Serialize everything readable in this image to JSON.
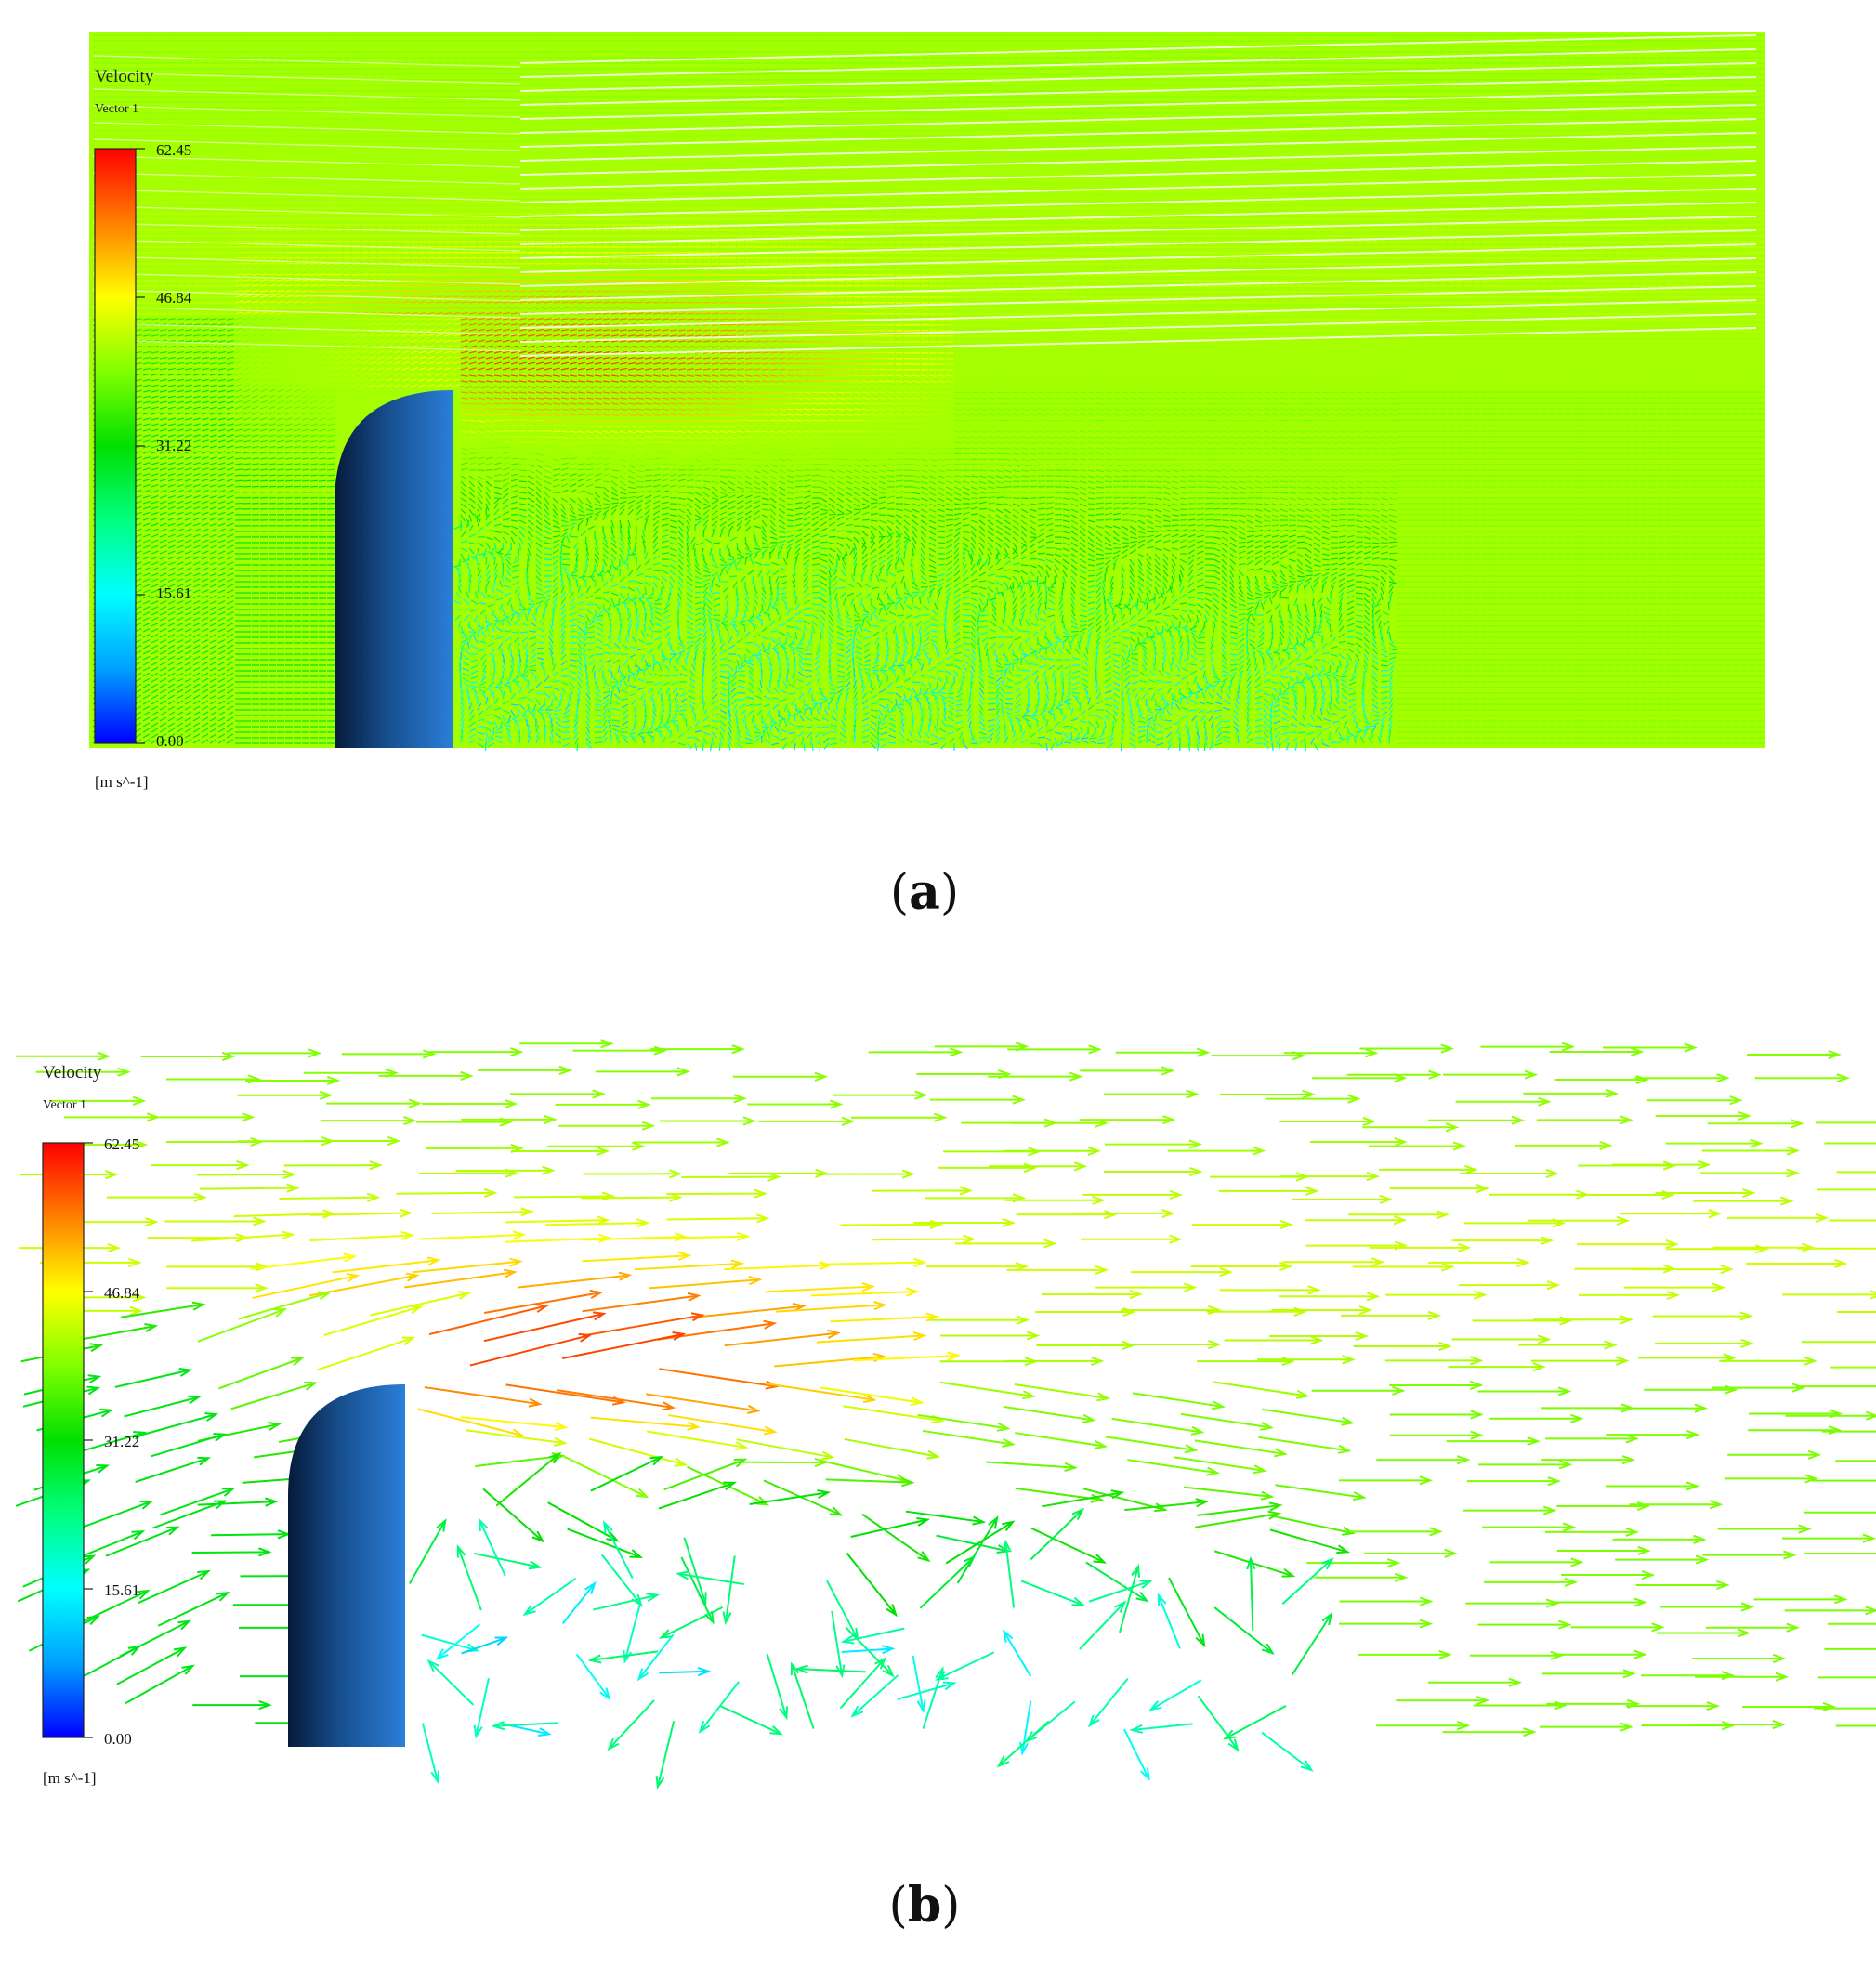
{
  "panels": [
    {
      "caption": "(a)",
      "caption_letter": "a",
      "legend": {
        "title": "Velocity",
        "subtitle": "Vector 1",
        "units": "[m s^-1]",
        "ticks": [
          "62.45",
          "46.84",
          "31.22",
          "15.61",
          "0.00"
        ]
      },
      "density": "dense"
    },
    {
      "caption": "(b)",
      "caption_letter": "b",
      "legend": {
        "title": "Velocity",
        "subtitle": "Vector 1",
        "units": "[m s^-1]",
        "ticks": [
          "62.45",
          "46.84",
          "31.22",
          "15.61",
          "0.00"
        ]
      },
      "density": "sparse"
    }
  ],
  "colormap": [
    "#0000ff",
    "#00a0ff",
    "#00ffff",
    "#00ff80",
    "#00e000",
    "#80ff00",
    "#ffff00",
    "#ff8000",
    "#ff0000"
  ],
  "colorbar_range": [
    0.0,
    62.45
  ]
}
